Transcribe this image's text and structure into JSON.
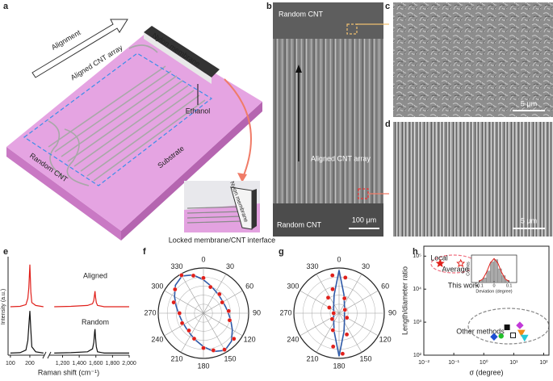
{
  "panels": {
    "a": {
      "label": "a",
      "alignment": "Alignment",
      "aligned_array": "Aligned CNT array",
      "nylon": "Nylon membrane",
      "ethanol": "Ethanol",
      "random": "Random CNT",
      "substrate": "Substrate",
      "inset_nylon": "Nylon membrane",
      "caption": "Locked membrane/CNT interface"
    },
    "b": {
      "label": "b",
      "random_top": "Random CNT",
      "aligned": "Aligned CNT array",
      "random_bottom": "Random CNT",
      "scale": "100 μm"
    },
    "c": {
      "label": "c",
      "scale": "5 μm"
    },
    "d": {
      "label": "d",
      "scale": "5 μm"
    }
  },
  "chart_data": [
    {
      "type": "line",
      "panel": "e",
      "xlabel": "Raman shift (cm⁻¹)",
      "ylabel": "Intensity (a.u.)",
      "x": [
        100,
        150,
        180,
        190,
        195,
        200,
        205,
        210,
        230,
        270,
        1100,
        1300,
        1500,
        1560,
        1575,
        1585,
        1590,
        1595,
        1605,
        1620,
        1700,
        2000
      ],
      "series": [
        {
          "name": "Aligned",
          "color": "#e0201b",
          "values": [
            1.15,
            1.16,
            1.2,
            1.35,
            1.6,
            2.15,
            1.5,
            1.25,
            1.18,
            1.15,
            1.15,
            1.16,
            1.18,
            1.22,
            1.3,
            1.45,
            1.52,
            1.4,
            1.25,
            1.18,
            1.15,
            1.15
          ]
        },
        {
          "name": "Random",
          "color": "#111111",
          "values": [
            0.05,
            0.06,
            0.12,
            0.35,
            0.7,
            1.05,
            0.6,
            0.2,
            0.08,
            0.05,
            0.05,
            0.06,
            0.08,
            0.15,
            0.3,
            0.55,
            0.62,
            0.45,
            0.2,
            0.08,
            0.05,
            0.05
          ]
        }
      ],
      "ylim": [
        0,
        2.3
      ],
      "xsegments": [
        {
          "xlim": [
            88,
            275
          ],
          "xticks": [
            100,
            200
          ]
        },
        {
          "xlim": [
            1040,
            2000
          ],
          "xticks": [
            {
              "value": 1200,
              "label": "1,200"
            },
            {
              "value": 1400,
              "label": "1,400"
            },
            {
              "value": 1600,
              "label": "1,600"
            },
            {
              "value": 1800,
              "label": "1,800"
            },
            {
              "value": 2000,
              "label": "2,000"
            }
          ]
        }
      ]
    },
    {
      "type": "polar",
      "panel": "f",
      "thetaticks": [
        0,
        30,
        60,
        90,
        120,
        150,
        180,
        210,
        240,
        270,
        300,
        330
      ],
      "rlim": [
        0,
        1
      ],
      "rticks": [
        0.2,
        0.4,
        0.6,
        0.8,
        1
      ],
      "series": [
        {
          "marker": "line",
          "color": "#2f5aa8",
          "theta": [
            0,
            15,
            30,
            45,
            60,
            75,
            90,
            105,
            120,
            135,
            150,
            165,
            180,
            195,
            210,
            225,
            240,
            255,
            270,
            285,
            300,
            315,
            330,
            345
          ],
          "values": [
            0.739,
            0.626,
            0.552,
            0.512,
            0.5,
            0.512,
            0.552,
            0.626,
            0.739,
            0.876,
            0.95,
            0.876,
            0.739,
            0.626,
            0.552,
            0.512,
            0.5,
            0.512,
            0.552,
            0.626,
            0.739,
            0.876,
            0.95,
            0.876
          ]
        },
        {
          "marker": "dot",
          "color": "#e0201b",
          "theta": [
            0,
            15,
            40,
            60,
            85,
            105,
            130,
            150,
            165,
            180,
            200,
            220,
            245,
            270,
            290,
            310,
            330,
            345
          ],
          "values": [
            0.78,
            0.6,
            0.55,
            0.48,
            0.56,
            0.6,
            0.88,
            0.93,
            0.85,
            0.77,
            0.6,
            0.5,
            0.52,
            0.53,
            0.7,
            0.82,
            0.97,
            0.86
          ]
        }
      ]
    },
    {
      "type": "polar",
      "panel": "g",
      "thetaticks": [
        0,
        30,
        60,
        90,
        120,
        150,
        180,
        210,
        240,
        270,
        300,
        330
      ],
      "rlim": [
        0,
        1
      ],
      "rticks": [
        0.2,
        0.4,
        0.6,
        0.8,
        1
      ],
      "series": [
        {
          "marker": "line",
          "color": "#2f5aa8",
          "theta": [
            0,
            15,
            30,
            45,
            60,
            75,
            90,
            105,
            120,
            135,
            150,
            165,
            180,
            195,
            210,
            225,
            240,
            255,
            270,
            285,
            300,
            315,
            330,
            345
          ],
          "values": [
            0.95,
            0.419,
            0.234,
            0.168,
            0.138,
            0.124,
            0.12,
            0.124,
            0.138,
            0.168,
            0.234,
            0.419,
            0.95,
            0.419,
            0.234,
            0.168,
            0.138,
            0.124,
            0.12,
            0.124,
            0.138,
            0.168,
            0.234,
            0.419
          ]
        },
        {
          "marker": "dot",
          "color": "#e0201b",
          "theta": [
            350,
            10,
            345,
            20,
            325,
            300,
            60,
            120,
            160,
            175,
            190,
            200,
            230,
            270
          ],
          "values": [
            0.85,
            0.8,
            0.55,
            0.35,
            0.42,
            0.25,
            0.15,
            0.2,
            0.5,
            0.9,
            0.75,
            0.4,
            0.2,
            0.12
          ]
        }
      ]
    },
    {
      "type": "scatter",
      "panel": "h",
      "xlabel": "σ (degree)",
      "ylabel": "Length/diameter ratio",
      "log_x": true,
      "log_y": true,
      "xlim": [
        0.01,
        150
      ],
      "ylim": [
        100,
        200000
      ],
      "xticks": [
        {
          "value": 0.01,
          "label": "10⁻²"
        },
        {
          "value": 0.1,
          "label": "10⁻¹"
        },
        {
          "value": 1,
          "label": "10⁰"
        },
        {
          "value": 10,
          "label": "10¹"
        },
        {
          "value": 100,
          "label": "10²"
        }
      ],
      "yticks": [
        {
          "value": 100,
          "label": "10²"
        },
        {
          "value": 1000,
          "label": "10³"
        },
        {
          "value": 10000,
          "label": "10⁴"
        },
        {
          "value": 100000,
          "label": "10⁵"
        }
      ],
      "annotations": {
        "local": "Local",
        "average": "Average",
        "this_work": "This work",
        "other": "Other methods"
      },
      "points": [
        {
          "x": 0.035,
          "y": 60000,
          "color": "#e0201b",
          "marker": "star"
        },
        {
          "x": 0.17,
          "y": 60000,
          "color": "#e0201b",
          "marker": "star-open"
        },
        {
          "x": 2.2,
          "y": 360,
          "color": "#1f4fd1",
          "marker": "diamond"
        },
        {
          "x": 3.8,
          "y": 380,
          "color": "#22c02a",
          "marker": "circle"
        },
        {
          "x": 6,
          "y": 700,
          "color": "#111111",
          "marker": "square"
        },
        {
          "x": 9.5,
          "y": 400,
          "color": "#111111",
          "marker": "square-open"
        },
        {
          "x": 16,
          "y": 800,
          "color": "#c23ad8",
          "marker": "diamond"
        },
        {
          "x": 18,
          "y": 480,
          "color": "#f28c18",
          "marker": "triangle"
        },
        {
          "x": 23,
          "y": 340,
          "color": "#27c9d8",
          "marker": "triangle"
        }
      ],
      "inset": {
        "xlabel": "Deviation (degree)",
        "ylabel": "Counts",
        "color": "#aaaaaa",
        "xlim": [
          -0.15,
          0.15
        ],
        "ylim": [
          0,
          12
        ],
        "xticks": [
          {
            "value": -0.1,
            "label": "−0.1"
          },
          0,
          0.1
        ],
        "bins": [
          -0.1,
          -0.075,
          -0.05,
          -0.025,
          0,
          0.025,
          0.05,
          0.075,
          0.1
        ],
        "counts": [
          1,
          2,
          5,
          9,
          10,
          6,
          3,
          1
        ],
        "fit": {
          "color": "#e0201b",
          "x": [
            -0.1,
            -0.075,
            -0.05,
            -0.025,
            0,
            0.025,
            0.05,
            0.075,
            0.1
          ],
          "values": [
            0.5,
            1.5,
            4.5,
            8.5,
            10.5,
            8.5,
            4.5,
            1.5,
            0.5
          ]
        }
      }
    }
  ]
}
